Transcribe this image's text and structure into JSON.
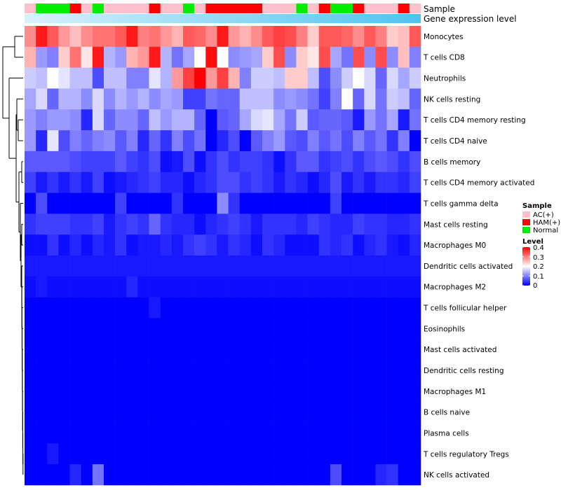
{
  "chart_data": {
    "type": "heatmap",
    "annotation_tracks": [
      {
        "name": "Sample",
        "values": [
          "AC(+)",
          "Normal",
          "Normal",
          "Normal",
          "HAM(+)",
          "AC(+)",
          "Normal",
          "AC(+)",
          "AC(+)",
          "AC(+)",
          "AC(+)",
          "HAM(+)",
          "AC(+)",
          "AC(+)",
          "Normal",
          "AC(+)",
          "HAM(+)",
          "HAM(+)",
          "HAM(+)",
          "HAM(+)",
          "HAM(+)",
          "AC(+)",
          "AC(+)",
          "AC(+)",
          "Normal",
          "AC(+)",
          "HAM(+)",
          "Normal",
          "Normal",
          "HAM(+)",
          "AC(+)",
          "AC(+)",
          "AC(+)",
          "HAM(+)",
          "AC(+)"
        ]
      },
      {
        "name": "Gene expression level",
        "values": []
      }
    ],
    "rows": [
      "Monocytes",
      "T cells CD8",
      "Neutrophils",
      "NK cells resting",
      "T cells CD4 memory resting",
      "T cells CD4 naive",
      "B cells memory",
      "T cells CD4 memory activated",
      "T cells gamma delta",
      "Mast cells resting",
      "Macrophages M0",
      "Dendritic cells activated",
      "Macrophages M2",
      "T cells follicular helper",
      "Eosinophils",
      "Mast cells activated",
      "Dendritic cells resting",
      "Macrophages M1",
      "B cells naive",
      "Plasma cells",
      "T cells regulatory  Tregs",
      "NK cells activated"
    ],
    "values": [
      [
        0.29,
        0.38,
        0.33,
        0.28,
        0.25,
        0.29,
        0.31,
        0.31,
        0.33,
        0.38,
        0.3,
        0.31,
        0.28,
        0.26,
        0.33,
        0.32,
        0.29,
        0.38,
        0.28,
        0.26,
        0.29,
        0.33,
        0.35,
        0.34,
        0.3,
        0.24,
        0.33,
        0.33,
        0.32,
        0.29,
        0.33,
        0.3,
        0.24,
        0.25,
        0.33
      ],
      [
        0.26,
        0.12,
        0.1,
        0.24,
        0.31,
        0.22,
        0.38,
        0.14,
        0.12,
        0.26,
        0.28,
        0.38,
        0.14,
        0.09,
        0.13,
        0.2,
        0.39,
        0.2,
        0.11,
        0.12,
        0.13,
        0.24,
        0.34,
        0.11,
        0.24,
        0.22,
        0.34,
        0.13,
        0.09,
        0.34,
        0.11,
        0.34,
        0.11,
        0.25,
        0.1
      ],
      [
        0.16,
        0.15,
        0.2,
        0.18,
        0.15,
        0.15,
        0.06,
        0.15,
        0.15,
        0.1,
        0.1,
        0.18,
        0.14,
        0.28,
        0.35,
        0.4,
        0.28,
        0.35,
        0.26,
        0.1,
        0.16,
        0.16,
        0.15,
        0.24,
        0.24,
        0.15,
        0.06,
        0.11,
        0.16,
        0.2,
        0.17,
        0.08,
        0.17,
        0.13,
        0.16
      ],
      [
        0.13,
        0.17,
        0.08,
        0.14,
        0.14,
        0.11,
        0.17,
        0.11,
        0.14,
        0.12,
        0.14,
        0.11,
        0.13,
        0.12,
        0.05,
        0.05,
        0.09,
        0.08,
        0.08,
        0.15,
        0.15,
        0.15,
        0.11,
        0.12,
        0.11,
        0.09,
        0.05,
        0.1,
        0.2,
        0.08,
        0.17,
        0.09,
        0.16,
        0.15,
        0.08
      ],
      [
        0.12,
        0.1,
        0.12,
        0.12,
        0.11,
        0.03,
        0.17,
        0.08,
        0.11,
        0.11,
        0.08,
        0.15,
        0.12,
        0.14,
        0.14,
        0.08,
        0.0,
        0.07,
        0.08,
        0.13,
        0.17,
        0.18,
        0.13,
        0.09,
        0.16,
        0.07,
        0.08,
        0.08,
        0.07,
        0.02,
        0.12,
        0.09,
        0.13,
        0.02,
        0.09
      ],
      [
        0.12,
        0.03,
        0.18,
        0.06,
        0.1,
        0.08,
        0.1,
        0.11,
        0.07,
        0.1,
        0.03,
        0.08,
        0.04,
        0.1,
        0.06,
        0.09,
        0.0,
        0.03,
        0.06,
        0.0,
        0.07,
        0.1,
        0.12,
        0.07,
        0.06,
        0.1,
        0.07,
        0.09,
        0.06,
        0.1,
        0.07,
        0.09,
        0.04,
        0.1,
        0.0
      ],
      [
        0.07,
        0.07,
        0.07,
        0.07,
        0.06,
        0.05,
        0.05,
        0.05,
        0.07,
        0.05,
        0.04,
        0.06,
        0.01,
        0.02,
        0.06,
        0.01,
        0.04,
        0.06,
        0.04,
        0.05,
        0.05,
        0.04,
        0.01,
        0.04,
        0.07,
        0.07,
        0.04,
        0.05,
        0.06,
        0.04,
        0.06,
        0.07,
        0.06,
        0.04,
        0.06
      ],
      [
        0.05,
        0.02,
        0.04,
        0.02,
        0.04,
        0.02,
        0.05,
        0.01,
        0.02,
        0.03,
        0.04,
        0.05,
        0.03,
        0.03,
        0.01,
        0.03,
        0.04,
        0.06,
        0.06,
        0.04,
        0.05,
        0.04,
        0.02,
        0.04,
        0.03,
        0.01,
        0.03,
        0.06,
        0.02,
        0.04,
        0.02,
        0.04,
        0.04,
        0.03,
        0.05
      ],
      [
        0.0,
        0.06,
        0.0,
        0.0,
        0.0,
        0.0,
        0.0,
        0.0,
        0.05,
        0.0,
        0.0,
        0.0,
        0.0,
        0.04,
        0.0,
        0.0,
        0.0,
        0.11,
        0.04,
        0.0,
        0.0,
        0.0,
        0.0,
        0.0,
        0.0,
        0.0,
        0.0,
        0.05,
        0.0,
        0.0,
        0.0,
        0.0,
        0.0,
        0.0,
        0.0
      ],
      [
        0.04,
        0.05,
        0.05,
        0.05,
        0.04,
        0.04,
        0.05,
        0.02,
        0.04,
        0.05,
        0.04,
        0.08,
        0.04,
        0.03,
        0.03,
        0.01,
        0.03,
        0.04,
        0.05,
        0.04,
        0.02,
        0.04,
        0.04,
        0.04,
        0.03,
        0.05,
        0.04,
        0.03,
        0.03,
        0.05,
        0.04,
        0.04,
        0.03,
        0.03,
        0.04
      ],
      [
        0.01,
        0.01,
        0.04,
        0.01,
        0.03,
        0.01,
        0.03,
        0.02,
        0.04,
        0.01,
        0.02,
        0.02,
        0.03,
        0.02,
        0.04,
        0.05,
        0.04,
        0.02,
        0.04,
        0.03,
        0.01,
        0.04,
        0.03,
        0.01,
        0.01,
        0.01,
        0.04,
        0.03,
        0.04,
        0.01,
        0.03,
        0.04,
        0.02,
        0.01,
        0.03
      ],
      [
        0.02,
        0.02,
        0.02,
        0.02,
        0.02,
        0.02,
        0.02,
        0.02,
        0.02,
        0.02,
        0.02,
        0.02,
        0.02,
        0.02,
        0.02,
        0.02,
        0.02,
        0.02,
        0.02,
        0.02,
        0.02,
        0.02,
        0.02,
        0.02,
        0.02,
        0.02,
        0.02,
        0.02,
        0.02,
        0.02,
        0.02,
        0.02,
        0.02,
        0.02,
        0.02
      ],
      [
        0.01,
        0.02,
        0.01,
        0.01,
        0.01,
        0.01,
        0.01,
        0.01,
        0.01,
        0.03,
        0.01,
        0.01,
        0.01,
        0.01,
        0.01,
        0.01,
        0.01,
        0.01,
        0.01,
        0.01,
        0.01,
        0.01,
        0.01,
        0.01,
        0.01,
        0.01,
        0.01,
        0.01,
        0.01,
        0.01,
        0.01,
        0.01,
        0.01,
        0.01,
        0.01
      ],
      [
        0.0,
        0.0,
        0.0,
        0.0,
        0.0,
        0.0,
        0.0,
        0.0,
        0.0,
        0.0,
        0.0,
        0.02,
        0.0,
        0.0,
        0.0,
        0.0,
        0.0,
        0.0,
        0.0,
        0.0,
        0.0,
        0.0,
        0.0,
        0.0,
        0.0,
        0.0,
        0.0,
        0.0,
        0.0,
        0.0,
        0.0,
        0.0,
        0.0,
        0.0,
        0.0
      ],
      [
        0.0,
        0.0,
        0.0,
        0.0,
        0.0,
        0.0,
        0.0,
        0.0,
        0.0,
        0.0,
        0.0,
        0.0,
        0.0,
        0.0,
        0.0,
        0.0,
        0.0,
        0.0,
        0.0,
        0.0,
        0.0,
        0.0,
        0.0,
        0.0,
        0.0,
        0.0,
        0.0,
        0.0,
        0.0,
        0.0,
        0.0,
        0.0,
        0.0,
        0.0,
        0.0
      ],
      [
        0.0,
        0.0,
        0.0,
        0.0,
        0.0,
        0.0,
        0.0,
        0.0,
        0.0,
        0.0,
        0.0,
        0.0,
        0.0,
        0.0,
        0.0,
        0.0,
        0.0,
        0.0,
        0.0,
        0.0,
        0.0,
        0.0,
        0.0,
        0.0,
        0.0,
        0.0,
        0.0,
        0.0,
        0.0,
        0.0,
        0.0,
        0.0,
        0.0,
        0.0,
        0.0
      ],
      [
        0.0,
        0.0,
        0.0,
        0.0,
        0.0,
        0.0,
        0.0,
        0.0,
        0.0,
        0.0,
        0.0,
        0.0,
        0.0,
        0.0,
        0.0,
        0.0,
        0.0,
        0.0,
        0.0,
        0.0,
        0.0,
        0.0,
        0.0,
        0.0,
        0.0,
        0.0,
        0.0,
        0.0,
        0.0,
        0.0,
        0.0,
        0.0,
        0.0,
        0.0,
        0.0
      ],
      [
        0.0,
        0.0,
        0.0,
        0.0,
        0.0,
        0.0,
        0.0,
        0.0,
        0.0,
        0.0,
        0.0,
        0.0,
        0.0,
        0.0,
        0.0,
        0.0,
        0.0,
        0.0,
        0.0,
        0.0,
        0.0,
        0.0,
        0.0,
        0.0,
        0.0,
        0.0,
        0.0,
        0.0,
        0.0,
        0.0,
        0.0,
        0.0,
        0.0,
        0.0,
        0.0
      ],
      [
        0.0,
        0.0,
        0.0,
        0.0,
        0.0,
        0.0,
        0.0,
        0.0,
        0.0,
        0.0,
        0.0,
        0.0,
        0.0,
        0.0,
        0.0,
        0.0,
        0.0,
        0.0,
        0.0,
        0.0,
        0.0,
        0.0,
        0.0,
        0.0,
        0.0,
        0.0,
        0.0,
        0.0,
        0.0,
        0.0,
        0.0,
        0.0,
        0.0,
        0.0,
        0.0
      ],
      [
        0.0,
        0.0,
        0.0,
        0.0,
        0.0,
        0.0,
        0.0,
        0.0,
        0.0,
        0.0,
        0.0,
        0.0,
        0.0,
        0.0,
        0.0,
        0.0,
        0.0,
        0.0,
        0.0,
        0.0,
        0.0,
        0.0,
        0.0,
        0.0,
        0.0,
        0.0,
        0.0,
        0.0,
        0.0,
        0.0,
        0.0,
        0.0,
        0.0,
        0.0,
        0.0
      ],
      [
        0.0,
        0.0,
        0.02,
        0.0,
        0.0,
        0.0,
        0.0,
        0.0,
        0.0,
        0.0,
        0.0,
        0.0,
        0.0,
        0.0,
        0.0,
        0.0,
        0.0,
        0.0,
        0.0,
        0.0,
        0.0,
        0.0,
        0.0,
        0.0,
        0.0,
        0.0,
        0.0,
        0.0,
        0.0,
        0.0,
        0.0,
        0.0,
        0.0,
        0.0,
        0.0
      ],
      [
        0.0,
        0.0,
        0.0,
        0.0,
        0.03,
        0.0,
        0.09,
        0.0,
        0.0,
        0.0,
        0.0,
        0.0,
        0.0,
        0.0,
        0.0,
        0.0,
        0.0,
        0.0,
        0.0,
        0.0,
        0.0,
        0.0,
        0.0,
        0.0,
        0.0,
        0.0,
        0.0,
        0.06,
        0.0,
        0.0,
        0.0,
        0.03,
        0.04,
        0.0,
        0.0
      ]
    ],
    "legends": [
      {
        "title": "Sample",
        "entries": [
          {
            "label": "AC(+)",
            "color": "#ffc0cb"
          },
          {
            "label": "HAM(+)",
            "color": "#ff0000"
          },
          {
            "label": "Normal",
            "color": "#00ee00"
          }
        ]
      },
      {
        "title": "Level",
        "range": [
          0,
          0.4
        ],
        "ticks": [
          "0.4",
          "0.3",
          "0.2",
          "0.1",
          "0"
        ]
      }
    ],
    "colors": {
      "low": "#0000ff",
      "mid": "#ffffff",
      "high": "#ff0000",
      "AC(+)": "#ffc0cb",
      "HAM(+)": "#ff0000",
      "Normal": "#00ee00",
      "gene_expression_bar_start": "#d9f1fb",
      "gene_expression_bar_end": "#4fc3ee"
    }
  }
}
